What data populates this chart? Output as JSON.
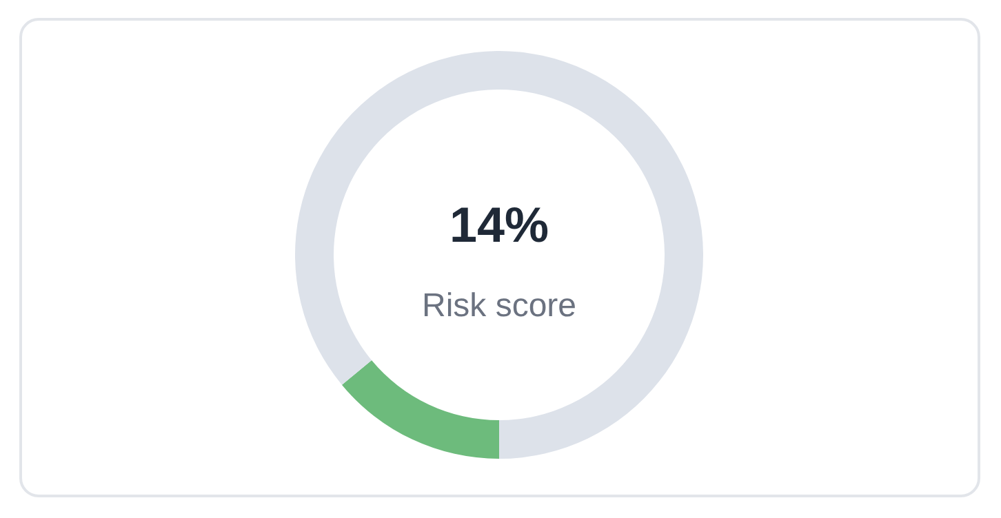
{
  "chart_data": {
    "type": "donut",
    "title": "14%",
    "subtitle": "Risk score",
    "categories": [
      null,
      null
    ],
    "values": [
      14,
      86
    ],
    "colors": [
      "#6dbb7c",
      "#dde2ea"
    ]
  }
}
